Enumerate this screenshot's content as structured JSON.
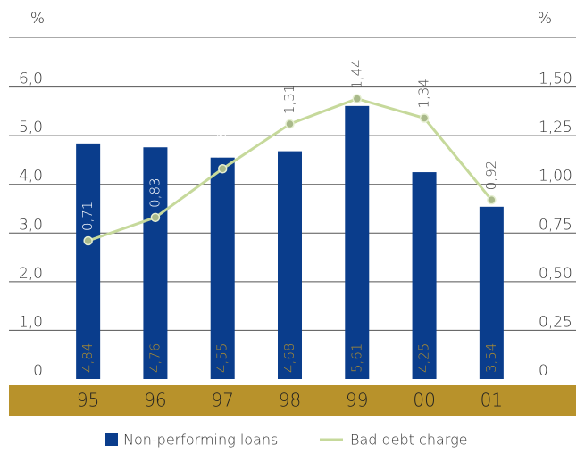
{
  "chart_data": {
    "type": "bar_line",
    "y_label": "%",
    "y2_label": "%",
    "categories": [
      "95",
      "96",
      "97",
      "98",
      "99",
      "00",
      "01"
    ],
    "series": [
      {
        "name": "Non-performing loans",
        "type": "bar",
        "color": "#0a3d8c",
        "values": [
          4.84,
          4.76,
          4.55,
          4.68,
          5.61,
          4.25,
          3.54
        ],
        "value_labels": [
          "4,84",
          "4,76",
          "4,55",
          "4,68",
          "5,61",
          "4,25",
          "3,54"
        ]
      },
      {
        "name": "Bad debt charge",
        "type": "line",
        "axis": "y2",
        "color": "#c6d99b",
        "values": [
          0.71,
          0.83,
          1.08,
          1.31,
          1.44,
          1.34,
          0.92
        ],
        "value_labels": [
          "0,71",
          "0,83",
          "1,08",
          "1,31",
          "1,44",
          "1,34",
          "0,92"
        ]
      }
    ],
    "ylim": [
      0,
      7
    ],
    "yticks": [
      0,
      {
        "value": 1,
        "label": "1,0"
      },
      {
        "value": 2,
        "label": "2,0"
      },
      {
        "value": 3,
        "label": "3,0"
      },
      {
        "value": 4,
        "label": "4,0"
      },
      {
        "value": 5,
        "label": "5,0"
      },
      {
        "value": 6,
        "label": "6,0"
      }
    ],
    "y2lim": [
      0,
      1.75
    ],
    "y2ticks": [
      0,
      {
        "value": 0.25,
        "label": "0,25"
      },
      {
        "value": 0.5,
        "label": "0,50"
      },
      {
        "value": 0.75,
        "label": "0,75"
      },
      {
        "value": 1,
        "label": "1,00"
      },
      {
        "value": 1.25,
        "label": "1,25"
      },
      {
        "value": 1.5,
        "label": "1,50"
      }
    ],
    "grid": true,
    "band_color": "#b8922b",
    "legend": "bottom"
  }
}
